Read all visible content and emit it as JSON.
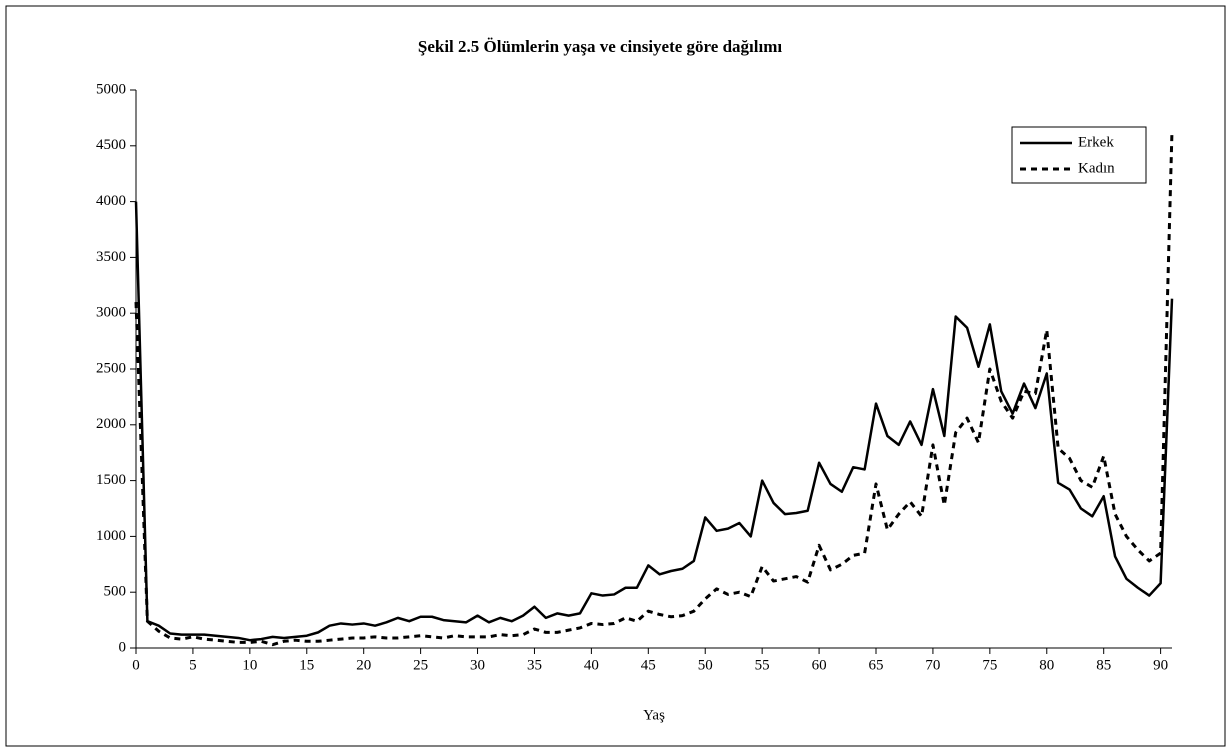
{
  "chart_data": {
    "type": "line",
    "title": "Şekil 2.5 Ölümlerin yaşa ve cinsiyete göre dağılımı",
    "x_label": "Yaş",
    "x": [
      0,
      1,
      2,
      3,
      4,
      5,
      6,
      7,
      8,
      9,
      10,
      11,
      12,
      13,
      14,
      15,
      16,
      17,
      18,
      19,
      20,
      21,
      22,
      23,
      24,
      25,
      26,
      27,
      28,
      29,
      30,
      31,
      32,
      33,
      34,
      35,
      36,
      37,
      38,
      39,
      40,
      41,
      42,
      43,
      44,
      45,
      46,
      47,
      48,
      49,
      50,
      51,
      52,
      53,
      54,
      55,
      56,
      57,
      58,
      59,
      60,
      61,
      62,
      63,
      64,
      65,
      66,
      67,
      68,
      69,
      70,
      71,
      72,
      73,
      74,
      75,
      76,
      77,
      78,
      79,
      80,
      81,
      82,
      83,
      84,
      85,
      86,
      87,
      88,
      89,
      90,
      91
    ],
    "series": [
      {
        "name": "Erkek",
        "color": "#000000",
        "dash": "solid",
        "values": [
          4000,
          240,
          200,
          130,
          120,
          120,
          120,
          110,
          100,
          90,
          70,
          80,
          100,
          90,
          100,
          110,
          140,
          200,
          220,
          210,
          220,
          200,
          230,
          270,
          240,
          280,
          280,
          250,
          240,
          230,
          290,
          230,
          270,
          240,
          290,
          370,
          270,
          310,
          290,
          310,
          490,
          470,
          480,
          540,
          540,
          740,
          660,
          690,
          710,
          780,
          1170,
          1050,
          1070,
          1120,
          1000,
          1500,
          1300,
          1200,
          1210,
          1230,
          1660,
          1470,
          1400,
          1620,
          1600,
          2190,
          1900,
          1820,
          2030,
          1820,
          2320,
          1900,
          2970,
          2870,
          2520,
          2900,
          2300,
          2100,
          2370,
          2150,
          2460,
          1480,
          1420,
          1250,
          1180,
          1360,
          820,
          620,
          540,
          470,
          580,
          3130
        ]
      },
      {
        "name": "Kadın",
        "color": "#000000",
        "dash": "dashed",
        "values": [
          3100,
          240,
          150,
          90,
          80,
          100,
          80,
          70,
          60,
          50,
          50,
          60,
          30,
          60,
          70,
          60,
          60,
          70,
          80,
          90,
          90,
          100,
          90,
          90,
          100,
          110,
          100,
          90,
          110,
          100,
          100,
          100,
          120,
          110,
          120,
          170,
          140,
          140,
          160,
          180,
          220,
          210,
          220,
          270,
          240,
          330,
          300,
          280,
          290,
          330,
          440,
          530,
          480,
          500,
          460,
          730,
          600,
          620,
          640,
          590,
          920,
          700,
          750,
          830,
          850,
          1470,
          1060,
          1200,
          1310,
          1180,
          1820,
          1280,
          1930,
          2060,
          1840,
          2500,
          2210,
          2060,
          2300,
          2280,
          2850,
          1790,
          1700,
          1500,
          1440,
          1720,
          1200,
          1000,
          880,
          780,
          850,
          4640
        ]
      }
    ],
    "xlim": [
      0,
      91
    ],
    "xticks": [
      0,
      5,
      10,
      15,
      20,
      25,
      30,
      35,
      40,
      45,
      50,
      55,
      60,
      65,
      70,
      75,
      80,
      85,
      90
    ],
    "ylim": [
      0,
      5000
    ],
    "yticks": [
      0,
      500,
      1000,
      1500,
      2000,
      2500,
      3000,
      3500,
      4000,
      4500,
      5000
    ],
    "legend": "top-right",
    "grid": false
  }
}
